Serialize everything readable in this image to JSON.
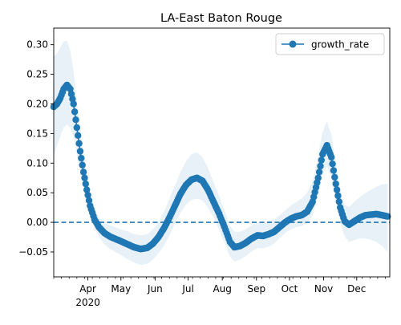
{
  "chart_data": {
    "type": "line",
    "title": "LA-East Baton Rouge",
    "xlabel": "",
    "ylabel": "",
    "x_start": "2020-03-01",
    "x_end": "2020-12-31",
    "ylim": [
      -0.092,
      0.328
    ],
    "y_ticks": [
      -0.05,
      0.0,
      0.05,
      0.1,
      0.15,
      0.2,
      0.25,
      0.3
    ],
    "y_tick_labels": [
      "−0.05",
      "0.00",
      "0.05",
      "0.10",
      "0.15",
      "0.20",
      "0.25",
      "0.30"
    ],
    "x_ticks": [
      {
        "date": "2020-04-01",
        "label": "Apr",
        "sublabel": "2020"
      },
      {
        "date": "2020-05-01",
        "label": "May",
        "sublabel": ""
      },
      {
        "date": "2020-06-01",
        "label": "Jun",
        "sublabel": ""
      },
      {
        "date": "2020-07-01",
        "label": "Jul",
        "sublabel": ""
      },
      {
        "date": "2020-08-01",
        "label": "Aug",
        "sublabel": ""
      },
      {
        "date": "2020-09-01",
        "label": "Sep",
        "sublabel": ""
      },
      {
        "date": "2020-10-01",
        "label": "Oct",
        "sublabel": ""
      },
      {
        "date": "2020-11-01",
        "label": "Nov",
        "sublabel": ""
      },
      {
        "date": "2020-12-01",
        "label": "Dec",
        "sublabel": ""
      }
    ],
    "grid": false,
    "legend": {
      "position": "top-right",
      "entries": [
        "growth_rate"
      ]
    },
    "reference_line": {
      "y": 0.0,
      "style": "dashed"
    },
    "series": [
      {
        "name": "growth_rate",
        "color": "#1f77b4",
        "band_color": "#1f77b4",
        "points": [
          {
            "x": "2020-03-01",
            "y": 0.195,
            "lo": 0.11,
            "hi": 0.28
          },
          {
            "x": "2020-03-04",
            "y": 0.2,
            "lo": 0.13,
            "hi": 0.285
          },
          {
            "x": "2020-03-07",
            "y": 0.21,
            "lo": 0.145,
            "hi": 0.295
          },
          {
            "x": "2020-03-10",
            "y": 0.225,
            "lo": 0.16,
            "hi": 0.305
          },
          {
            "x": "2020-03-13",
            "y": 0.232,
            "lo": 0.165,
            "hi": 0.307
          },
          {
            "x": "2020-03-16",
            "y": 0.225,
            "lo": 0.16,
            "hi": 0.29
          },
          {
            "x": "2020-03-19",
            "y": 0.2,
            "lo": 0.145,
            "hi": 0.255
          },
          {
            "x": "2020-03-22",
            "y": 0.16,
            "lo": 0.115,
            "hi": 0.205
          },
          {
            "x": "2020-03-25",
            "y": 0.12,
            "lo": 0.085,
            "hi": 0.16
          },
          {
            "x": "2020-03-28",
            "y": 0.085,
            "lo": 0.06,
            "hi": 0.115
          },
          {
            "x": "2020-03-31",
            "y": 0.055,
            "lo": 0.035,
            "hi": 0.08
          },
          {
            "x": "2020-04-03",
            "y": 0.028,
            "lo": 0.012,
            "hi": 0.048
          },
          {
            "x": "2020-04-07",
            "y": 0.005,
            "lo": -0.01,
            "hi": 0.022
          },
          {
            "x": "2020-04-11",
            "y": -0.008,
            "lo": -0.025,
            "hi": 0.008
          },
          {
            "x": "2020-04-16",
            "y": -0.018,
            "lo": -0.037,
            "hi": 0.0
          },
          {
            "x": "2020-04-21",
            "y": -0.024,
            "lo": -0.045,
            "hi": -0.005
          },
          {
            "x": "2020-04-26",
            "y": -0.028,
            "lo": -0.05,
            "hi": -0.008
          },
          {
            "x": "2020-05-01",
            "y": -0.032,
            "lo": -0.055,
            "hi": -0.012
          },
          {
            "x": "2020-05-07",
            "y": -0.037,
            "lo": -0.062,
            "hi": -0.015
          },
          {
            "x": "2020-05-13",
            "y": -0.042,
            "lo": -0.068,
            "hi": -0.02
          },
          {
            "x": "2020-05-19",
            "y": -0.045,
            "lo": -0.072,
            "hi": -0.022
          },
          {
            "x": "2020-05-25",
            "y": -0.043,
            "lo": -0.07,
            "hi": -0.02
          },
          {
            "x": "2020-05-30",
            "y": -0.036,
            "lo": -0.063,
            "hi": -0.012
          },
          {
            "x": "2020-06-04",
            "y": -0.025,
            "lo": -0.052,
            "hi": 0.0
          },
          {
            "x": "2020-06-09",
            "y": -0.01,
            "lo": -0.04,
            "hi": 0.018
          },
          {
            "x": "2020-06-14",
            "y": 0.008,
            "lo": -0.022,
            "hi": 0.04
          },
          {
            "x": "2020-06-19",
            "y": 0.028,
            "lo": -0.002,
            "hi": 0.062
          },
          {
            "x": "2020-06-24",
            "y": 0.048,
            "lo": 0.016,
            "hi": 0.085
          },
          {
            "x": "2020-06-29",
            "y": 0.063,
            "lo": 0.03,
            "hi": 0.103
          },
          {
            "x": "2020-07-04",
            "y": 0.072,
            "lo": 0.038,
            "hi": 0.115
          },
          {
            "x": "2020-07-09",
            "y": 0.075,
            "lo": 0.04,
            "hi": 0.118
          },
          {
            "x": "2020-07-14",
            "y": 0.07,
            "lo": 0.037,
            "hi": 0.11
          },
          {
            "x": "2020-07-19",
            "y": 0.055,
            "lo": 0.025,
            "hi": 0.092
          },
          {
            "x": "2020-07-24",
            "y": 0.035,
            "lo": 0.008,
            "hi": 0.068
          },
          {
            "x": "2020-07-29",
            "y": 0.015,
            "lo": -0.012,
            "hi": 0.045
          },
          {
            "x": "2020-08-03",
            "y": -0.008,
            "lo": -0.035,
            "hi": 0.02
          },
          {
            "x": "2020-08-08",
            "y": -0.033,
            "lo": -0.058,
            "hi": -0.006
          },
          {
            "x": "2020-08-12",
            "y": -0.042,
            "lo": -0.066,
            "hi": -0.016
          },
          {
            "x": "2020-08-17",
            "y": -0.04,
            "lo": -0.063,
            "hi": -0.016
          },
          {
            "x": "2020-08-22",
            "y": -0.035,
            "lo": -0.057,
            "hi": -0.012
          },
          {
            "x": "2020-08-27",
            "y": -0.028,
            "lo": -0.05,
            "hi": -0.006
          },
          {
            "x": "2020-09-02",
            "y": -0.022,
            "lo": -0.043,
            "hi": 0.0
          },
          {
            "x": "2020-09-07",
            "y": -0.023,
            "lo": -0.044,
            "hi": -0.002
          },
          {
            "x": "2020-09-12",
            "y": -0.02,
            "lo": -0.041,
            "hi": 0.002
          },
          {
            "x": "2020-09-17",
            "y": -0.016,
            "lo": -0.036,
            "hi": 0.005
          },
          {
            "x": "2020-09-22",
            "y": -0.008,
            "lo": -0.027,
            "hi": 0.012
          },
          {
            "x": "2020-09-27",
            "y": 0.0,
            "lo": -0.018,
            "hi": 0.02
          },
          {
            "x": "2020-10-02",
            "y": 0.006,
            "lo": -0.012,
            "hi": 0.028
          },
          {
            "x": "2020-10-07",
            "y": 0.01,
            "lo": -0.008,
            "hi": 0.034
          },
          {
            "x": "2020-10-12",
            "y": 0.012,
            "lo": -0.006,
            "hi": 0.04
          },
          {
            "x": "2020-10-17",
            "y": 0.018,
            "lo": -0.001,
            "hi": 0.05
          },
          {
            "x": "2020-10-22",
            "y": 0.035,
            "lo": 0.012,
            "hi": 0.07
          },
          {
            "x": "2020-10-27",
            "y": 0.075,
            "lo": 0.045,
            "hi": 0.113
          },
          {
            "x": "2020-10-31",
            "y": 0.115,
            "lo": 0.08,
            "hi": 0.153
          },
          {
            "x": "2020-11-04",
            "y": 0.13,
            "lo": 0.095,
            "hi": 0.17
          },
          {
            "x": "2020-11-08",
            "y": 0.11,
            "lo": 0.075,
            "hi": 0.148
          },
          {
            "x": "2020-11-12",
            "y": 0.065,
            "lo": 0.035,
            "hi": 0.1
          },
          {
            "x": "2020-11-16",
            "y": 0.025,
            "lo": 0.0,
            "hi": 0.056
          },
          {
            "x": "2020-11-20",
            "y": 0.002,
            "lo": -0.024,
            "hi": 0.03
          },
          {
            "x": "2020-11-24",
            "y": -0.004,
            "lo": -0.033,
            "hi": 0.026
          },
          {
            "x": "2020-11-29",
            "y": 0.002,
            "lo": -0.03,
            "hi": 0.035
          },
          {
            "x": "2020-12-04",
            "y": 0.008,
            "lo": -0.027,
            "hi": 0.043
          },
          {
            "x": "2020-12-09",
            "y": 0.012,
            "lo": -0.027,
            "hi": 0.05
          },
          {
            "x": "2020-12-14",
            "y": 0.013,
            "lo": -0.03,
            "hi": 0.055
          },
          {
            "x": "2020-12-19",
            "y": 0.014,
            "lo": -0.033,
            "hi": 0.06
          },
          {
            "x": "2020-12-24",
            "y": 0.012,
            "lo": -0.04,
            "hi": 0.064
          },
          {
            "x": "2020-12-29",
            "y": 0.01,
            "lo": -0.05,
            "hi": 0.065
          }
        ]
      }
    ]
  }
}
